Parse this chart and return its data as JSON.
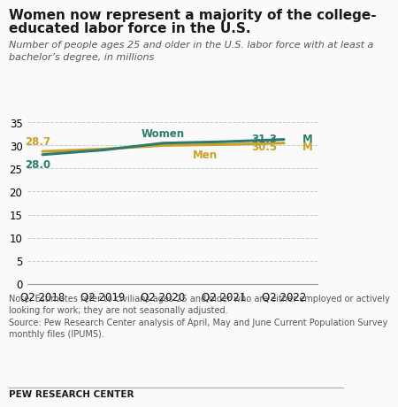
{
  "title_line1": "Women now represent a majority of the college-",
  "title_line2": "educated labor force in the U.S.",
  "subtitle": "Number of people ages 25 and older in the U.S. labor force with at least a\nbachelor’s degree, in millions",
  "x_labels": [
    "Q2 2018",
    "Q2 2019",
    "Q2 2020",
    "Q2 2021",
    "Q2 2022"
  ],
  "x_values": [
    0,
    1,
    2,
    3,
    4
  ],
  "women_values": [
    28.0,
    29.0,
    30.5,
    30.8,
    31.3
  ],
  "men_values": [
    28.7,
    29.2,
    30.0,
    30.2,
    30.5
  ],
  "women_color": "#2E7B6E",
  "men_color": "#C9A227",
  "women_label": "Women",
  "men_label": "Men",
  "women_start_label": "28.0",
  "men_start_label": "28.7",
  "women_end_label": "31.3",
  "men_end_label": "30.5",
  "ylim": [
    0,
    37
  ],
  "yticks": [
    0,
    5,
    10,
    15,
    20,
    25,
    30,
    35
  ],
  "note_text": "Note: Estimates refer to civilians ages 25 and older who are either employed or actively\nlooking for work; they are not seasonally adjusted.\nSource: Pew Research Center analysis of April, May and June Current Population Survey\nmonthly files (IPUMS).",
  "footer": "PEW RESEARCH CENTER",
  "bg_color": "#FAFAFA",
  "grid_color": "#CCCCCC",
  "line_width": 2.2
}
